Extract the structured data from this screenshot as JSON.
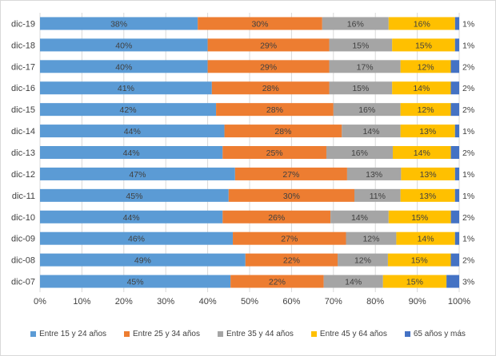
{
  "chart_data": {
    "type": "bar",
    "orientation": "horizontal",
    "stacked": "percent",
    "categories": [
      "dic-19",
      "dic-18",
      "dic-17",
      "dic-16",
      "dic-15",
      "dic-14",
      "dic-13",
      "dic-12",
      "dic-11",
      "dic-10",
      "dic-09",
      "dic-08",
      "dic-07"
    ],
    "series": [
      {
        "name": "Entre 15 y 24 años",
        "color": "#5b9bd5",
        "values": [
          38,
          40,
          40,
          41,
          42,
          44,
          44,
          47,
          45,
          44,
          46,
          49,
          45
        ]
      },
      {
        "name": "Entre 25 y 34 años",
        "color": "#ed7d31",
        "values": [
          30,
          29,
          29,
          28,
          28,
          28,
          25,
          27,
          30,
          26,
          27,
          22,
          22
        ]
      },
      {
        "name": "Entre 35 y 44 años",
        "color": "#a5a5a5",
        "values": [
          16,
          15,
          17,
          15,
          16,
          14,
          16,
          13,
          11,
          14,
          12,
          12,
          14
        ]
      },
      {
        "name": "Entre 45 y 64 años",
        "color": "#ffc000",
        "values": [
          16,
          15,
          12,
          14,
          12,
          13,
          14,
          13,
          13,
          15,
          14,
          15,
          15
        ]
      },
      {
        "name": "65 años y más",
        "color": "#4472c4",
        "values": [
          1,
          1,
          2,
          2,
          2,
          1,
          2,
          1,
          1,
          2,
          1,
          2,
          3
        ]
      }
    ],
    "xlim": [
      0,
      100
    ],
    "x_ticks": [
      "0%",
      "10%",
      "20%",
      "30%",
      "40%",
      "50%",
      "60%",
      "70%",
      "80%",
      "90%",
      "100%"
    ],
    "grid": true,
    "legend": "bottom",
    "value_suffix": "%"
  }
}
